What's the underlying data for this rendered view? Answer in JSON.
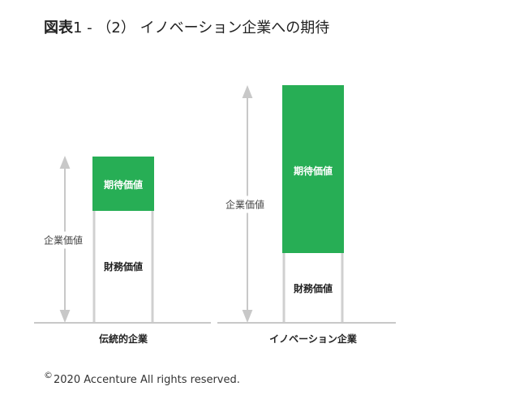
{
  "title": {
    "bold": "図表",
    "rest": "1 - （2） イノベーション企業への期待"
  },
  "colors": {
    "green": "#27ae55",
    "outline": "#d0d0d0",
    "arrow": "#c8c8c8"
  },
  "diagram": {
    "traditional": {
      "category": "伝統的企業",
      "axis_label": "企業価値",
      "top_segment": "期待価値",
      "bottom_segment": "財務価値"
    },
    "innovation": {
      "category": "イノベーション企業",
      "axis_label": "企業価値",
      "top_segment": "期待価値",
      "bottom_segment": "財務価値"
    }
  },
  "footer": {
    "symbol": "©",
    "text": "2020 Accenture All rights reserved."
  }
}
